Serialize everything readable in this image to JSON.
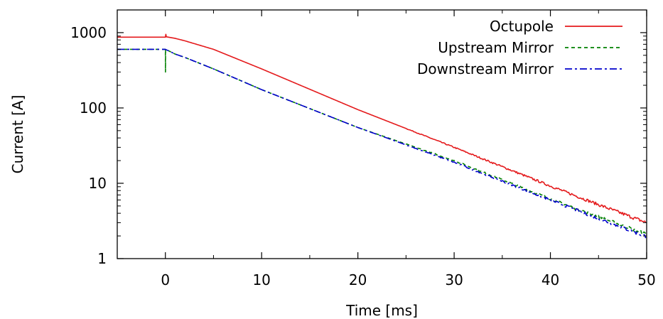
{
  "chart_data": {
    "type": "line",
    "title": "",
    "xlabel": "Time [ms]",
    "ylabel": "Current [A]",
    "xlim": [
      -5,
      50
    ],
    "ylim": [
      1,
      2000
    ],
    "yscale": "log",
    "xticks": [
      0,
      10,
      20,
      30,
      40,
      50
    ],
    "xtick_labels": [
      "0",
      "10",
      "20",
      "30",
      "40",
      "50"
    ],
    "yticks": [
      1,
      10,
      100,
      1000
    ],
    "ytick_labels": [
      "1",
      "10",
      "100",
      "1000"
    ],
    "grid": false,
    "legend_position": "top-right",
    "series": [
      {
        "name": "Octupole",
        "color": "#e41a1c",
        "dash": "solid",
        "x": [
          -5,
          0,
          0.05,
          0.1,
          1,
          2,
          5,
          10,
          20,
          30,
          40,
          45,
          50
        ],
        "y": [
          870,
          870,
          950,
          880,
          840,
          780,
          600,
          330,
          95,
          30,
          9.2,
          5.2,
          3.0
        ]
      },
      {
        "name": "Upstream Mirror",
        "color": "#008000",
        "dash": "dashed",
        "x": [
          -5,
          0,
          0.01,
          0.02,
          0.03,
          0.5,
          1,
          2,
          5,
          10,
          20,
          30,
          40,
          45,
          50
        ],
        "y": [
          600,
          600,
          300,
          560,
          600,
          560,
          520,
          470,
          330,
          175,
          55,
          20,
          6.2,
          3.6,
          2.1
        ]
      },
      {
        "name": "Downstream Mirror",
        "color": "#0000cc",
        "dash": "dashdot",
        "x": [
          -5,
          0,
          0.5,
          1,
          2,
          5,
          10,
          20,
          30,
          40,
          45,
          50
        ],
        "y": [
          600,
          600,
          560,
          520,
          470,
          330,
          175,
          55,
          19,
          6.0,
          3.4,
          1.95
        ]
      }
    ]
  }
}
